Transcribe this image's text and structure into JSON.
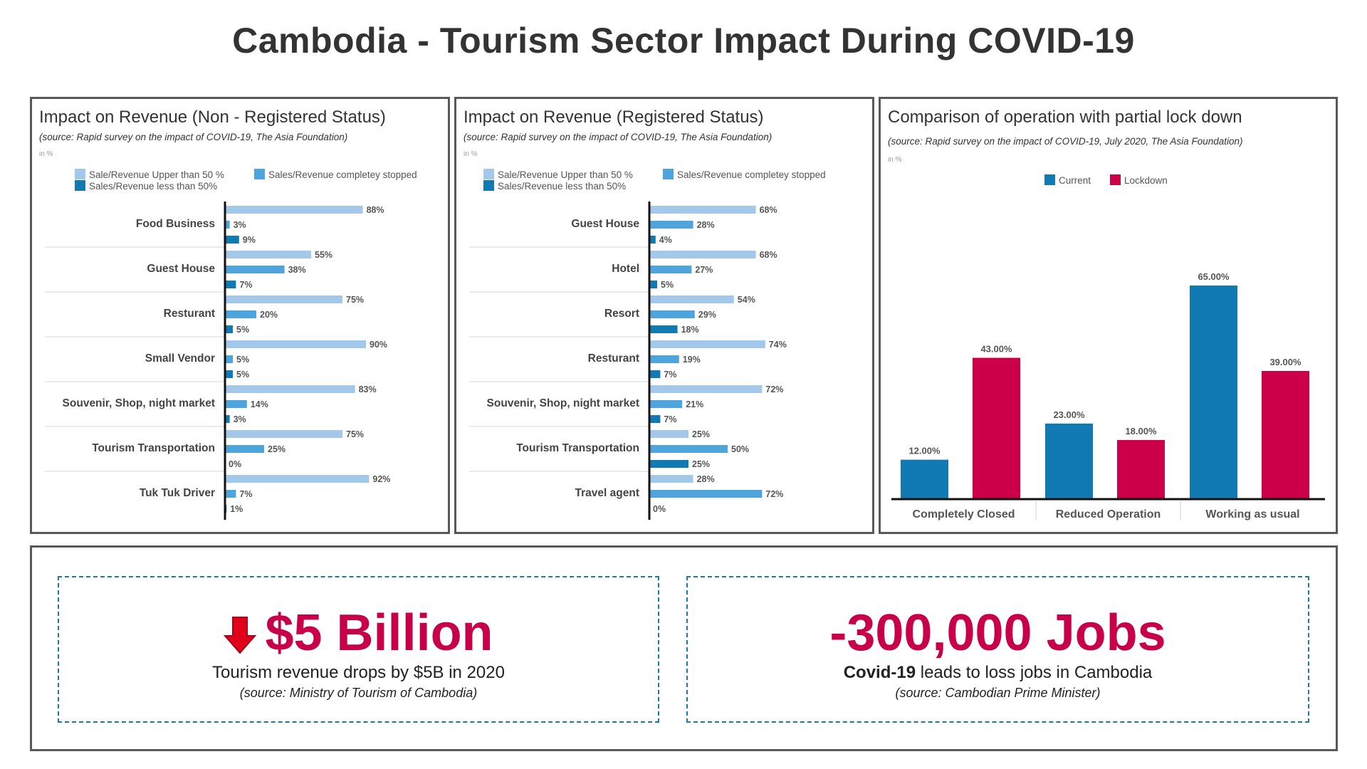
{
  "title": "Cambodia - Tourism Sector Impact During COVID-19",
  "colors": {
    "light": "#a3c8ea",
    "medium": "#4ea5dd",
    "dark": "#127ab3",
    "current": "#127ab3",
    "lockdown": "#cc0048",
    "kpi": "#c8004a"
  },
  "panels": {
    "non_registered": {
      "title": "Impact on Revenue (Non - Registered Status)",
      "source": "(source: Rapid survey on the impact of COVID-19, The Asia Foundation)",
      "unit": "in %",
      "legend": [
        "Sale/Revenue Upper than 50 %",
        "Sales/Revenue completey stopped",
        "Sales/Revenue less than 50%"
      ]
    },
    "registered": {
      "title": "Impact on Revenue (Registered Status)",
      "source": "(source: Rapid survey on the impact of COVID-19, The Asia Foundation)",
      "unit": "in %",
      "legend": [
        "Sale/Revenue Upper than 50 %",
        "Sales/Revenue completey stopped",
        "Sales/Revenue less than 50%"
      ]
    },
    "comparison": {
      "title": "Comparison of operation with partial lock down",
      "source": "(source: Rapid survey on the impact of COVID-19, July 2020, The Asia Foundation)",
      "unit": "in %",
      "legend": [
        "Current",
        "Lockdown"
      ]
    }
  },
  "chart_data": [
    {
      "type": "bar",
      "orientation": "horizontal",
      "title": "Impact on Revenue (Non - Registered Status)",
      "categories": [
        "Food Business",
        "Guest House",
        "Resturant",
        "Small Vendor",
        "Souvenir, Shop, night market",
        "Tourism Transportation",
        "Tuk Tuk Driver"
      ],
      "series": [
        {
          "name": "Sale/Revenue Upper than 50 %",
          "values": [
            88,
            55,
            75,
            90,
            83,
            75,
            92
          ]
        },
        {
          "name": "Sales/Revenue completey stopped",
          "values": [
            3,
            38,
            20,
            5,
            14,
            25,
            7
          ]
        },
        {
          "name": "Sales/Revenue less than 50%",
          "values": [
            9,
            7,
            5,
            5,
            3,
            0,
            1
          ]
        }
      ],
      "value_suffix": "%",
      "xlim": [
        0,
        100
      ]
    },
    {
      "type": "bar",
      "orientation": "horizontal",
      "title": "Impact on Revenue (Registered Status)",
      "categories": [
        "Guest House",
        "Hotel",
        "Resort",
        "Resturant",
        "Souvenir, Shop, night market",
        "Tourism Transportation",
        "Travel agent"
      ],
      "series": [
        {
          "name": "Sale/Revenue Upper than 50 %",
          "values": [
            68,
            68,
            54,
            74,
            72,
            25,
            28
          ]
        },
        {
          "name": "Sales/Revenue completey stopped",
          "values": [
            28,
            27,
            29,
            19,
            21,
            50,
            72
          ]
        },
        {
          "name": "Sales/Revenue less than 50%",
          "values": [
            4,
            5,
            18,
            7,
            7,
            25,
            0
          ]
        }
      ],
      "value_suffix": "%",
      "xlim": [
        0,
        100
      ]
    },
    {
      "type": "bar",
      "orientation": "vertical",
      "title": "Comparison of operation with partial lock down",
      "categories": [
        "Completely Closed",
        "Reduced Operation",
        "Working as usual"
      ],
      "series": [
        {
          "name": "Current",
          "values": [
            12.0,
            23.0,
            65.0
          ]
        },
        {
          "name": "Lockdown",
          "values": [
            43.0,
            18.0,
            39.0
          ]
        }
      ],
      "value_format": "0.00%",
      "ylim": [
        0,
        70
      ]
    }
  ],
  "kpis": [
    {
      "icon": "down-arrow-icon",
      "value": "$5 Billion",
      "line_bold": "",
      "line": "Tourism revenue drops by $5B in 2020",
      "source": "(source: Ministry of Tourism of Cambodia)"
    },
    {
      "icon": "",
      "value": "-300,000 Jobs",
      "line_bold": "Covid-19",
      "line": " leads to loss jobs in Cambodia",
      "source": "(source: Cambodian Prime Minister)"
    }
  ]
}
